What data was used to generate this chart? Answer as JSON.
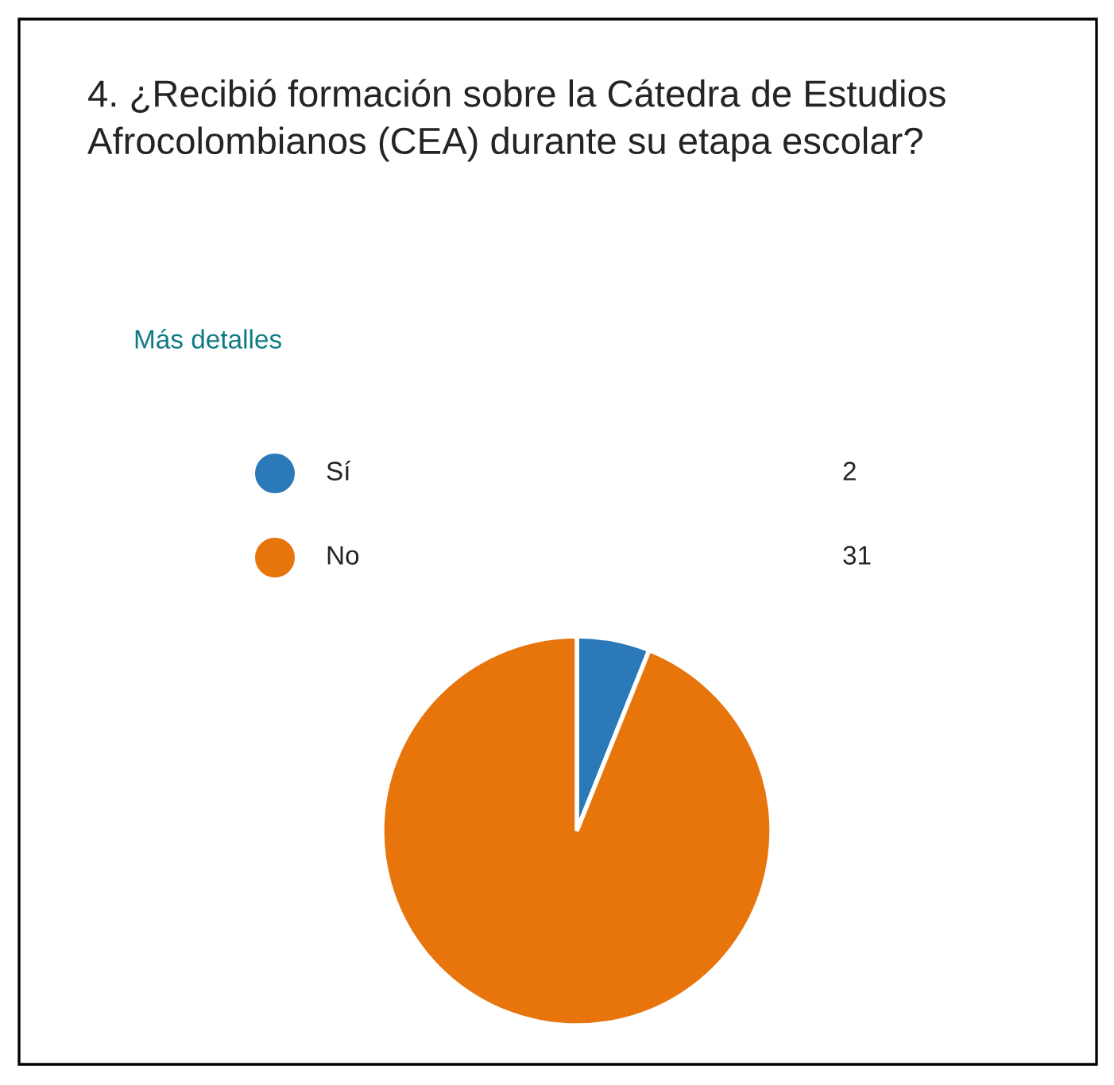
{
  "chart_data": {
    "type": "pie",
    "title": "4. ¿Recibió formación sobre la Cátedra de Estudios Afrocolombianos (CEA) durante su etapa escolar?",
    "annotations": [
      "Más detalles"
    ],
    "categories": [
      "Sí",
      "No"
    ],
    "values": [
      2,
      31
    ],
    "colors": [
      "#2b79b9",
      "#e8740c"
    ],
    "data_labels": true,
    "legend": "top"
  }
}
